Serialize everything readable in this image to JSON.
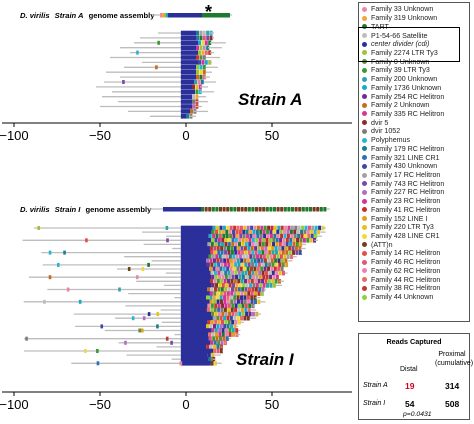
{
  "panel_a": {
    "title_prefix": "D. virilis",
    "title_strain": "Strain A",
    "title_suffix": "genome assembly",
    "asterisk": "*",
    "label": "Strain A",
    "x_ticks": [
      -100,
      -50,
      0,
      50
    ]
  },
  "panel_i": {
    "title_prefix": "D. virilis",
    "title_strain": "Strain I",
    "title_suffix": "genome assembly",
    "label": "Strain I",
    "x_ticks": [
      -100,
      -50,
      0,
      50
    ]
  },
  "legend": [
    {
      "label": "Family 33 Unknown",
      "color": "#e88aa6"
    },
    {
      "label": "Family 319 Unknown",
      "color": "#f1a53a"
    },
    {
      "label": "TART",
      "color": "#1e7a2e"
    },
    {
      "label": "P1-54-66 Satellite",
      "color": "#bdbdbd"
    },
    {
      "label": "center divider (cdi)",
      "color": "#2b2f9a",
      "italic": true
    },
    {
      "label": "Family 2274 LTR Ty3",
      "color": "#9ec23b"
    },
    {
      "label": "Family 0 Unknown",
      "color": "#5f8d3a"
    },
    {
      "label": "Family 39 LTR Ty3",
      "color": "#3c9a2e"
    },
    {
      "label": "Family 200 Unknown",
      "color": "#2ea3a8"
    },
    {
      "label": "Family 1736 Unknown",
      "color": "#1ca9c9"
    },
    {
      "label": "Family 254 RC Helitron",
      "color": "#6f2c91"
    },
    {
      "label": "Family 2 Unknown",
      "color": "#c76b1f"
    },
    {
      "label": "Family 335 RC Helitron",
      "color": "#d13a8e"
    },
    {
      "label": "dvir 5",
      "color": "#8b2d2d"
    },
    {
      "label": "dvir 1052",
      "color": "#7d7d7d"
    },
    {
      "label": "Polyphemus",
      "color": "#27b5d6"
    },
    {
      "label": "Family 179 RC Helitron",
      "color": "#1f7c8c"
    },
    {
      "label": "Family 321 LINE CR1",
      "color": "#2e6fb5"
    },
    {
      "label": "Family 430 Unknown",
      "color": "#3a4aa6"
    },
    {
      "label": "Family 17 RC Helitron",
      "color": "#a2a2a2"
    },
    {
      "label": "Family 743 RC Helitron",
      "color": "#7b4aa8"
    },
    {
      "label": "Family 227 RC Helitron",
      "color": "#b36cc2"
    },
    {
      "label": "Family 23 RC Helitron",
      "color": "#d6309b"
    },
    {
      "label": "Family 41 RC Helitron",
      "color": "#c72d2d"
    },
    {
      "label": "Family 152 LINE I",
      "color": "#e0a21c"
    },
    {
      "label": "Family 220 LTR Ty3",
      "color": "#e5c01e"
    },
    {
      "label": "Family 428 LINE CR1",
      "color": "#f3d83a"
    },
    {
      "label": "(ATT)n",
      "color": "#7a3b1a"
    },
    {
      "label": "Family 14 RC Helitron",
      "color": "#e64c4c"
    },
    {
      "label": "Family 46 RC Helitron",
      "color": "#e4557a"
    },
    {
      "label": "Family 62 RC Helitron",
      "color": "#f07fb0"
    },
    {
      "label": "Family 44 RC Helitron",
      "color": "#e86a6a"
    },
    {
      "label": "Family 38 RC Helitron",
      "color": "#c0392b"
    },
    {
      "label": "Family 44 Unknown",
      "color": "#8fcf3c"
    }
  ],
  "reads": {
    "title": "Reads Captured",
    "col_distal": "Distal",
    "col_proximal": "Proximal (cumulative)",
    "rows": [
      {
        "strain": "Strain A",
        "distal": "19",
        "proximal": "314",
        "distal_color": "#d0021b"
      },
      {
        "strain": "Strain I",
        "distal": "54",
        "proximal": "508",
        "distal_color": "#000000"
      }
    ],
    "pvalue": "p=0.0431"
  },
  "colors": {
    "cdi": "#2b2f9a",
    "satellite": "#bdbdbd",
    "tart": "#1e7a2e",
    "axis": "#000000"
  }
}
